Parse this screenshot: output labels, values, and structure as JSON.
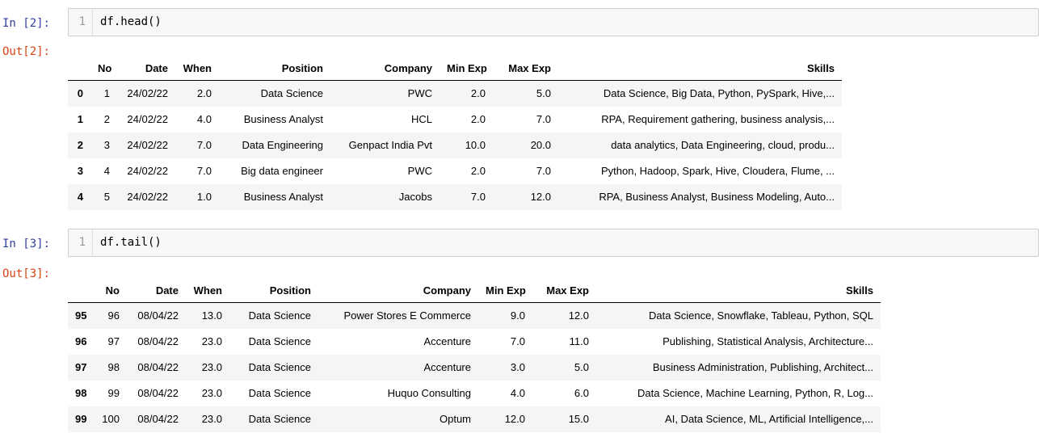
{
  "cells": [
    {
      "in_label": "In [2]:",
      "line_number": "1",
      "code": "df.head()",
      "out_label": "Out[2]:",
      "table": {
        "columns": [
          "No",
          "Date",
          "When",
          "Position",
          "Company",
          "Min Exp",
          "Max Exp",
          "Skills"
        ],
        "rows": [
          {
            "index": "0",
            "cells": [
              "1",
              "24/02/22",
              "2.0",
              "Data Science",
              "PWC",
              "2.0",
              "5.0",
              "Data Science, Big Data, Python, PySpark, Hive,..."
            ]
          },
          {
            "index": "1",
            "cells": [
              "2",
              "24/02/22",
              "4.0",
              "Business Analyst",
              "HCL",
              "2.0",
              "7.0",
              "RPA, Requirement gathering, business analysis,..."
            ]
          },
          {
            "index": "2",
            "cells": [
              "3",
              "24/02/22",
              "7.0",
              "Data Engineering",
              "Genpact India Pvt",
              "10.0",
              "20.0",
              "data analytics, Data Engineering, cloud, produ..."
            ]
          },
          {
            "index": "3",
            "cells": [
              "4",
              "24/02/22",
              "7.0",
              "Big data engineer",
              "PWC",
              "2.0",
              "7.0",
              "Python, Hadoop, Spark, Hive, Cloudera, Flume, ..."
            ]
          },
          {
            "index": "4",
            "cells": [
              "5",
              "24/02/22",
              "1.0",
              "Business Analyst",
              "Jacobs",
              "7.0",
              "12.0",
              "RPA, Business Analyst, Business Modeling, Auto..."
            ]
          }
        ]
      }
    },
    {
      "in_label": "In [3]:",
      "line_number": "1",
      "code": "df.tail()",
      "out_label": "Out[3]:",
      "table": {
        "columns": [
          "No",
          "Date",
          "When",
          "Position",
          "Company",
          "Min Exp",
          "Max Exp",
          "Skills"
        ],
        "rows": [
          {
            "index": "95",
            "cells": [
              "96",
              "08/04/22",
              "13.0",
              "Data Science",
              "Power Stores E Commerce",
              "9.0",
              "12.0",
              "Data Science, Snowflake, Tableau, Python, SQL"
            ]
          },
          {
            "index": "96",
            "cells": [
              "97",
              "08/04/22",
              "23.0",
              "Data Science",
              "Accenture",
              "7.0",
              "11.0",
              "Publishing, Statistical Analysis, Architecture..."
            ]
          },
          {
            "index": "97",
            "cells": [
              "98",
              "08/04/22",
              "23.0",
              "Data Science",
              "Accenture",
              "3.0",
              "5.0",
              "Business Administration, Publishing, Architect..."
            ]
          },
          {
            "index": "98",
            "cells": [
              "99",
              "08/04/22",
              "23.0",
              "Data Science",
              "Huquo Consulting",
              "4.0",
              "6.0",
              "Data Science, Machine Learning, Python, R, Log..."
            ]
          },
          {
            "index": "99",
            "cells": [
              "100",
              "08/04/22",
              "23.0",
              "Data Science",
              "Optum",
              "12.0",
              "15.0",
              "AI, Data Science, ML, Artificial Intelligence,..."
            ]
          }
        ]
      }
    }
  ],
  "colors": {
    "in_prompt": "#303F9F",
    "out_prompt": "#D84315",
    "input_bg": "#f7f7f7",
    "input_border": "#cfcfcf",
    "row_stripe": "#f5f5f5"
  }
}
